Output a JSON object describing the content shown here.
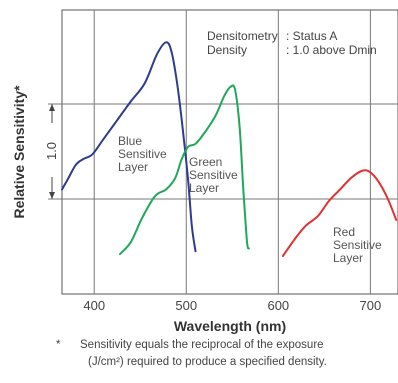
{
  "chart_data": {
    "type": "line",
    "xlabel": "Wavelength (nm)",
    "ylabel": "Relative Sensitivity*",
    "xlim": [
      365,
      730
    ],
    "x_ticks": [
      "400",
      "500",
      "600",
      "700"
    ],
    "grid": true,
    "annotation": {
      "line1_key": "Densitometry",
      "line1_val": ": Status A",
      "line2_key": "Density",
      "line2_val": ": 1.0 above Dmin"
    },
    "scale_marker": "1.0",
    "series": [
      {
        "name": "Blue Sensitive Layer",
        "label_lines": [
          "Blue",
          "Sensitive",
          "Layer"
        ],
        "color": "#2e3b8f",
        "points": [
          [
            365,
            0.1
          ],
          [
            372,
            0.22
          ],
          [
            380,
            0.36
          ],
          [
            388,
            0.42
          ],
          [
            398,
            0.47
          ],
          [
            410,
            0.63
          ],
          [
            425,
            0.83
          ],
          [
            440,
            1.03
          ],
          [
            455,
            1.22
          ],
          [
            468,
            1.52
          ],
          [
            478,
            1.65
          ],
          [
            484,
            1.55
          ],
          [
            490,
            1.22
          ],
          [
            496,
            0.75
          ],
          [
            502,
            0.2
          ],
          [
            506,
            -0.28
          ],
          [
            510,
            -0.55
          ]
        ]
      },
      {
        "name": "Green Sensitive Layer",
        "label_lines": [
          "Green",
          "Sensitive",
          "Layer"
        ],
        "color": "#1fa85a",
        "points": [
          [
            428,
            -0.58
          ],
          [
            440,
            -0.45
          ],
          [
            452,
            -0.2
          ],
          [
            466,
            0.03
          ],
          [
            478,
            0.1
          ],
          [
            488,
            0.22
          ],
          [
            495,
            0.42
          ],
          [
            502,
            0.55
          ],
          [
            510,
            0.58
          ],
          [
            520,
            0.7
          ],
          [
            532,
            0.88
          ],
          [
            541,
            1.08
          ],
          [
            548,
            1.18
          ],
          [
            553,
            1.15
          ],
          [
            558,
            0.75
          ],
          [
            562,
            0.1
          ],
          [
            566,
            -0.45
          ],
          [
            568,
            -0.52
          ]
        ]
      },
      {
        "name": "Red Sensitive Layer",
        "label_lines": [
          "Red",
          "Sensitive",
          "Layer"
        ],
        "color": "#e03232",
        "points": [
          [
            605,
            -0.6
          ],
          [
            618,
            -0.42
          ],
          [
            630,
            -0.28
          ],
          [
            643,
            -0.18
          ],
          [
            655,
            -0.02
          ],
          [
            667,
            0.1
          ],
          [
            680,
            0.23
          ],
          [
            692,
            0.3
          ],
          [
            700,
            0.28
          ],
          [
            709,
            0.18
          ],
          [
            719,
            0.0
          ],
          [
            728,
            -0.22
          ]
        ]
      }
    ]
  },
  "footnote": {
    "marker": "*",
    "line1": "Sensitivity equals the reciprocal of the exposure",
    "line2": "(J/cm²) required to produce a specified density."
  }
}
